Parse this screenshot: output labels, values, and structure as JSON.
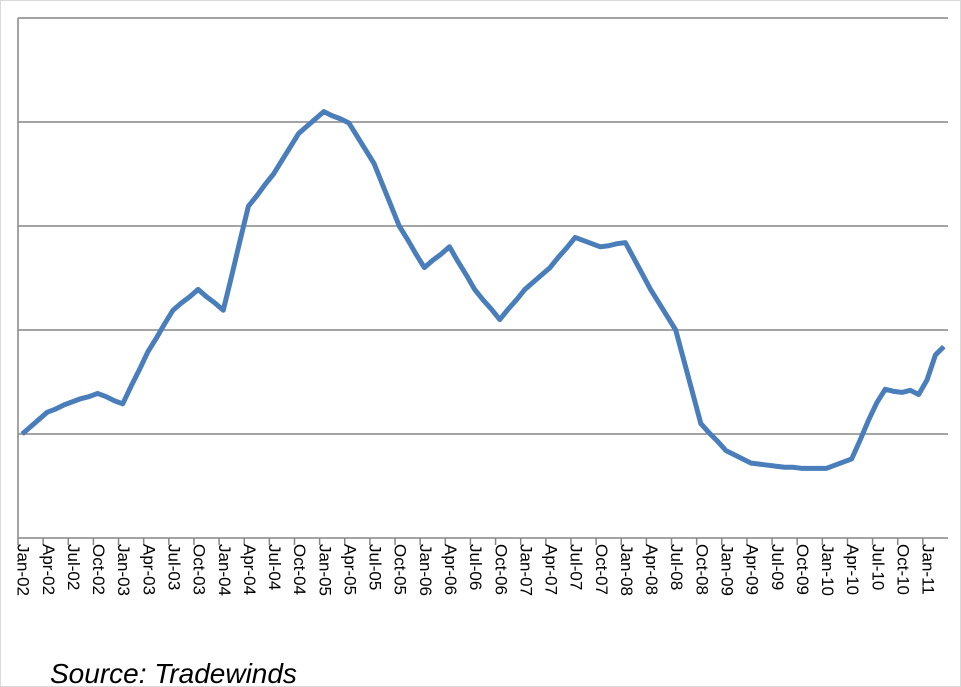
{
  "chart_data": {
    "type": "line",
    "categories": [
      "Jan-02",
      null,
      null,
      "Apr-02",
      null,
      null,
      "Jul-02",
      null,
      null,
      "Oct-02",
      null,
      null,
      "Jan-03",
      null,
      null,
      "Apr-03",
      null,
      null,
      "Jul-03",
      null,
      null,
      "Oct-03",
      null,
      null,
      "Jan-04",
      null,
      null,
      "Apr-04",
      null,
      null,
      "Jul-04",
      null,
      null,
      "Oct-04",
      null,
      null,
      "Jan-05",
      null,
      null,
      "Apr-05",
      null,
      null,
      "Jul-05",
      null,
      null,
      "Oct-05",
      null,
      null,
      "Jan-06",
      null,
      null,
      "Apr-06",
      null,
      null,
      "Jul-06",
      null,
      null,
      "Oct-06",
      null,
      null,
      "Jan-07",
      null,
      null,
      "Apr-07",
      null,
      null,
      "Jul-07",
      null,
      null,
      "Oct-07",
      null,
      null,
      "Jan-08",
      null,
      null,
      "Apr-08",
      null,
      null,
      "Jul-08",
      null,
      null,
      "Oct-08",
      null,
      null,
      "Jan-09",
      null,
      null,
      "Apr-09",
      null,
      null,
      "Jul-09",
      null,
      null,
      "Oct-09",
      null,
      null,
      "Jan-10",
      null,
      null,
      "Apr-10",
      null,
      null,
      "Jul-10",
      null,
      null,
      "Oct-10",
      null,
      null,
      "Jan-11",
      null,
      null
    ],
    "values": [
      1.0,
      1.07,
      1.14,
      1.21,
      1.24,
      1.28,
      1.31,
      1.34,
      1.36,
      1.39,
      1.36,
      1.32,
      1.29,
      1.46,
      1.62,
      1.79,
      1.92,
      2.06,
      2.19,
      2.26,
      2.32,
      2.39,
      2.32,
      2.26,
      2.19,
      2.52,
      2.86,
      3.19,
      3.29,
      3.4,
      3.5,
      3.63,
      3.76,
      3.89,
      3.96,
      4.03,
      4.1,
      4.06,
      4.03,
      3.99,
      3.86,
      3.73,
      3.6,
      3.4,
      3.2,
      3.0,
      2.87,
      2.73,
      2.6,
      2.67,
      2.73,
      2.8,
      2.66,
      2.53,
      2.39,
      2.29,
      2.2,
      2.1,
      2.2,
      2.29,
      2.39,
      2.46,
      2.53,
      2.6,
      2.7,
      2.79,
      2.89,
      2.86,
      2.83,
      2.8,
      2.81,
      2.83,
      2.84,
      2.69,
      2.54,
      2.39,
      2.26,
      2.13,
      2.0,
      1.7,
      1.4,
      1.1,
      1.01,
      0.93,
      0.84,
      0.8,
      0.76,
      0.72,
      0.71,
      0.7,
      0.69,
      0.68,
      0.68,
      0.67,
      0.67,
      0.67,
      0.67,
      0.7,
      0.73,
      0.76,
      0.94,
      1.13,
      1.3,
      1.43,
      1.41,
      1.4,
      1.42,
      1.38,
      1.52,
      1.76,
      1.84
    ],
    "color": "#4a7ebb",
    "ylim": [
      0,
      5
    ],
    "yticks": [
      0,
      1,
      2,
      3,
      4,
      5
    ],
    "grid": true,
    "source": "Source: Tradewinds"
  }
}
